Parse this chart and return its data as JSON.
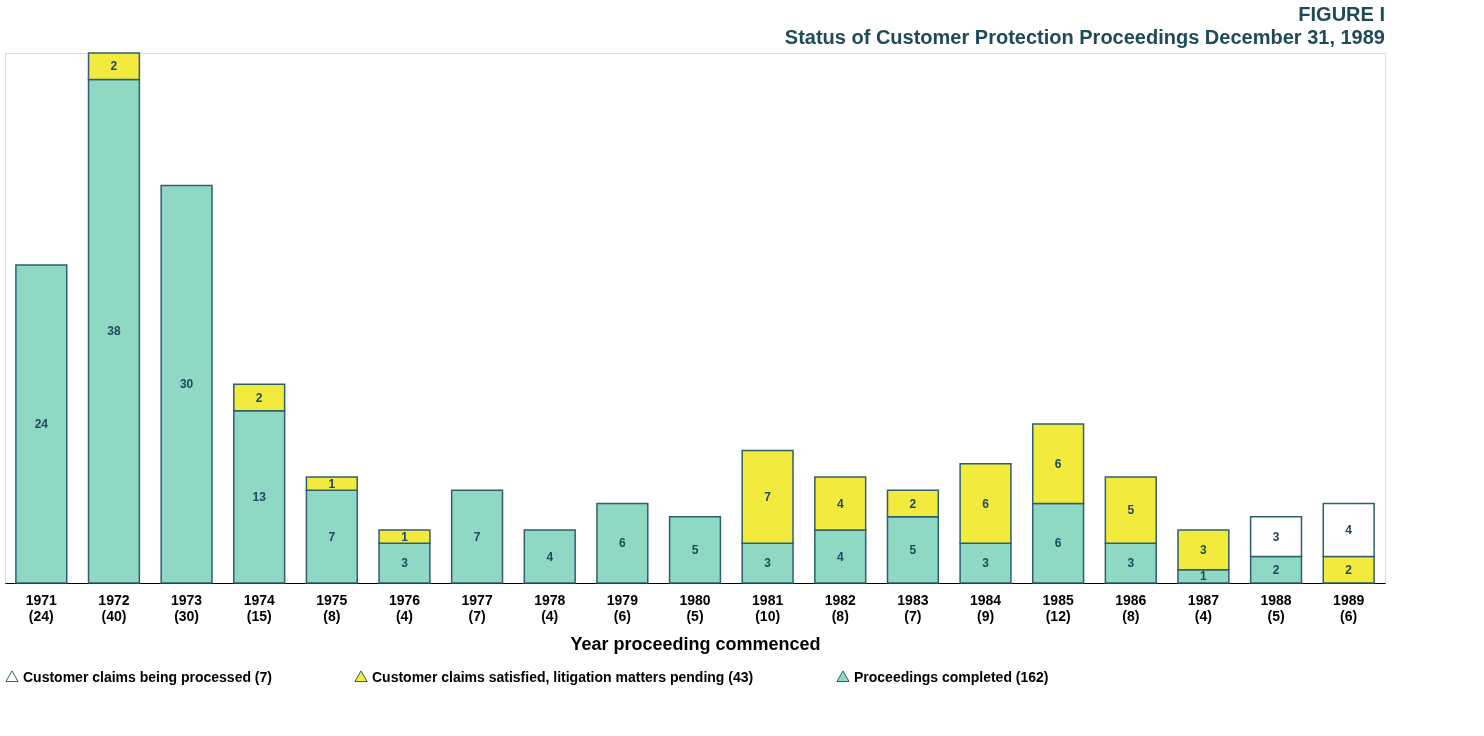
{
  "chart_data": {
    "type": "bar",
    "stacked": true,
    "data_labels": true,
    "grid": false,
    "legend": "bottom",
    "title": "FIGURE I",
    "subtitle": "Status of Customer Protection Proceedings December 31, 1989",
    "xlabel": "Year proceeding commenced",
    "categories": [
      "1971 (24)",
      "1972 (40)",
      "1973 (30)",
      "1974 (15)",
      "1975 (8)",
      "1976 (4)",
      "1977 (7)",
      "1978 (4)",
      "1979 (6)",
      "1980 (5)",
      "1981 (10)",
      "1982 (8)",
      "1983 (7)",
      "1984 (9)",
      "1985 (12)",
      "1986 (8)",
      "1987 (4)",
      "1988 (5)",
      "1989 (6)"
    ],
    "series": [
      {
        "name": "Proceedings completed (162)",
        "color": "#8fd8c4",
        "values": [
          24,
          38,
          30,
          13,
          7,
          3,
          7,
          4,
          6,
          5,
          3,
          4,
          5,
          3,
          6,
          3,
          1,
          2,
          null
        ]
      },
      {
        "name": "Customer claims satisfied, litigation matters pending (43)",
        "color": "#f2ea3c",
        "values": [
          null,
          2,
          null,
          2,
          1,
          1,
          null,
          null,
          null,
          null,
          7,
          4,
          2,
          6,
          6,
          5,
          3,
          null,
          2
        ]
      },
      {
        "name": "Customer claims being processed (7)",
        "color": "#ffffff",
        "values": [
          null,
          null,
          null,
          null,
          null,
          null,
          null,
          null,
          null,
          null,
          null,
          null,
          null,
          null,
          null,
          null,
          null,
          3,
          4
        ]
      }
    ]
  }
}
